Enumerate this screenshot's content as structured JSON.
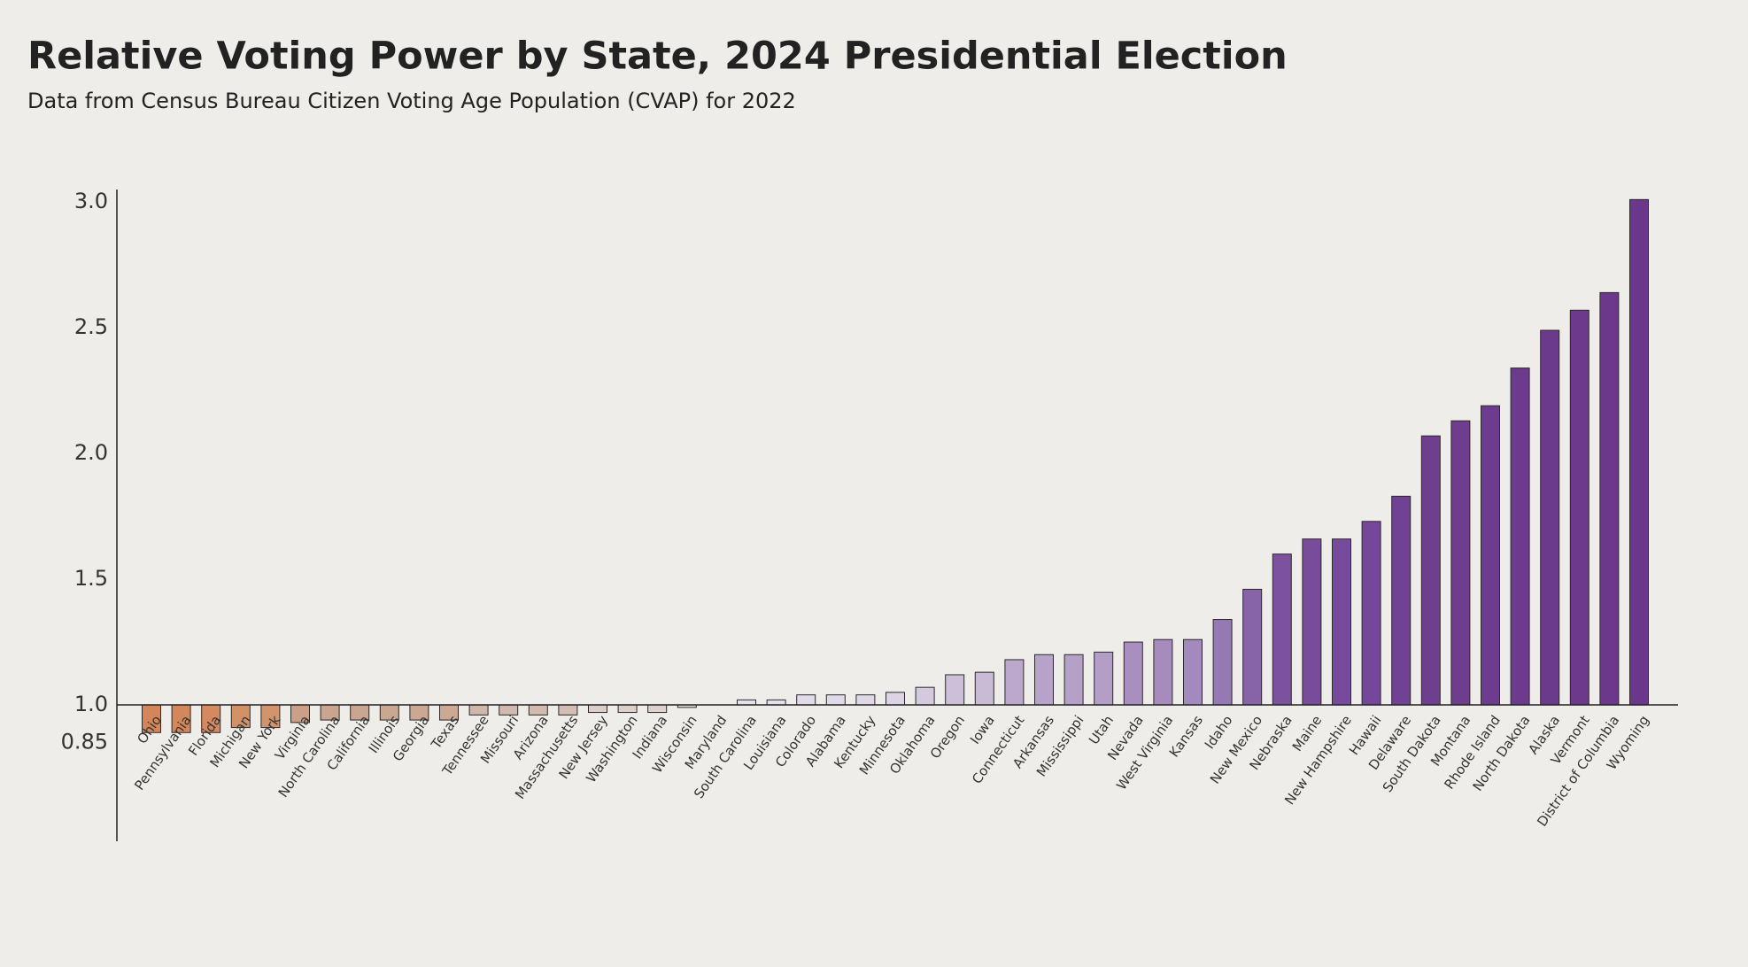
{
  "chart_data": {
    "type": "bar",
    "title": "Relative Voting Power by State, 2024 Presidential Election",
    "subtitle": "Data from Census Bureau Citizen Voting Age Population (CVAP) for 2022",
    "categories": [
      "Ohio",
      "Pennsylvania",
      "Florida",
      "Michigan",
      "New York",
      "Virginia",
      "North Carolina",
      "California",
      "Illinois",
      "Georgia",
      "Texas",
      "Tennessee",
      "Missouri",
      "Arizona",
      "Massachusetts",
      "New Jersey",
      "Washington",
      "Indiana",
      "Wisconsin",
      "Maryland",
      "South Carolina",
      "Louisiana",
      "Colorado",
      "Alabama",
      "Kentucky",
      "Minnesota",
      "Oklahoma",
      "Oregon",
      "Iowa",
      "Connecticut",
      "Arkansas",
      "Mississippi",
      "Utah",
      "Nevada",
      "West Virginia",
      "Kansas",
      "Idaho",
      "New Mexico",
      "Nebraska",
      "Maine",
      "New Hampshire",
      "Hawaii",
      "Delaware",
      "South Dakota",
      "Montana",
      "Rhode Island",
      "North Dakota",
      "Alaska",
      "Vermont",
      "District of Columbia",
      "Wyoming"
    ],
    "values": [
      0.89,
      0.89,
      0.89,
      0.91,
      0.91,
      0.93,
      0.94,
      0.94,
      0.94,
      0.94,
      0.94,
      0.96,
      0.96,
      0.96,
      0.96,
      0.97,
      0.97,
      0.97,
      0.99,
      1.0,
      1.02,
      1.02,
      1.04,
      1.04,
      1.04,
      1.05,
      1.07,
      1.12,
      1.13,
      1.18,
      1.2,
      1.2,
      1.21,
      1.25,
      1.26,
      1.26,
      1.34,
      1.46,
      1.6,
      1.66,
      1.66,
      1.73,
      1.83,
      2.07,
      2.13,
      2.19,
      2.34,
      2.49,
      2.57,
      2.64,
      3.01
    ],
    "colors": [
      "#d4855a",
      "#d4875c",
      "#d4895e",
      "#d39168",
      "#d3936b",
      "#cc9f87",
      "#caa58f",
      "#caa590",
      "#caa791",
      "#cba893",
      "#cba995",
      "#d1b7aa",
      "#d2b9ad",
      "#d3bbb0",
      "#d4bdb2",
      "#ddcdc7",
      "#decfc9",
      "#dfd1cb",
      "#e8dfdc",
      "#eeeae8",
      "#e6e0ea",
      "#e5dfea",
      "#e2dae8",
      "#e1d9e7",
      "#e0d8e6",
      "#ddd3e4",
      "#d5c9de",
      "#cdbfd9",
      "#c9bad6",
      "#bba8cc",
      "#b7a3c9",
      "#b5a1c8",
      "#b39ec7",
      "#a98fbf",
      "#a68cbd",
      "#a48abc",
      "#9678b2",
      "#8863a8",
      "#7c519e",
      "#784c9b",
      "#774b9b",
      "#75479a",
      "#714293",
      "#6f3e8f",
      "#6e3d8e",
      "#6e3c8e",
      "#6d3b8d",
      "#6c3a8c",
      "#6c398c",
      "#6b388b",
      "#6b378b"
    ],
    "ylim": [
      0.5,
      3.05
    ],
    "baseline": 1.0,
    "yticks": [
      {
        "value": 3,
        "label": "3.0"
      },
      2.5,
      {
        "value": 2,
        "label": "2.0"
      },
      1.5,
      {
        "value": 1,
        "label": "1.0"
      },
      0.85
    ]
  }
}
